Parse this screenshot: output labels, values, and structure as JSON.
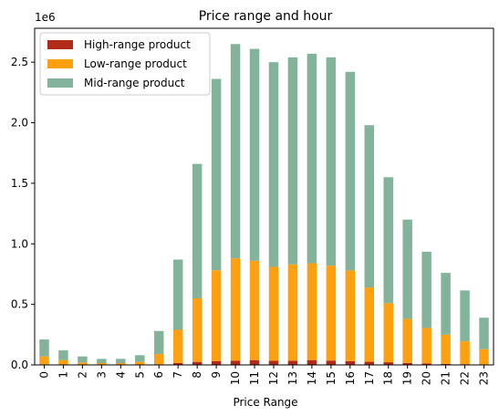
{
  "chart_data": {
    "type": "bar",
    "stacked": true,
    "title": "Price range and hour",
    "xlabel": "Price Range",
    "ylabel": "",
    "y_multiplier_label": "1e6",
    "categories": [
      "0",
      "1",
      "2",
      "3",
      "4",
      "5",
      "6",
      "7",
      "8",
      "9",
      "10",
      "11",
      "12",
      "13",
      "14",
      "15",
      "16",
      "17",
      "18",
      "19",
      "20",
      "21",
      "22",
      "23"
    ],
    "y_ticks": [
      0.0,
      0.5,
      1.0,
      1.5,
      2.0,
      2.5
    ],
    "y_tick_labels": [
      "0.0",
      "0.5",
      "1.0",
      "1.5",
      "2.0",
      "2.5"
    ],
    "ylim": [
      0,
      2.78
    ],
    "legend_position": "upper-left",
    "series": [
      {
        "name": "High-range product",
        "color": "#b22a1a",
        "values": [
          0.004,
          0.002,
          0.001,
          0.001,
          0.001,
          0.001,
          0.004,
          0.015,
          0.025,
          0.032,
          0.035,
          0.04,
          0.034,
          0.035,
          0.04,
          0.036,
          0.032,
          0.026,
          0.022,
          0.016,
          0.012,
          0.008,
          0.006,
          0.003
        ]
      },
      {
        "name": "Low-range product",
        "color": "#ffa010",
        "values": [
          0.066,
          0.038,
          0.019,
          0.014,
          0.014,
          0.024,
          0.086,
          0.275,
          0.525,
          0.75,
          0.845,
          0.82,
          0.776,
          0.795,
          0.8,
          0.784,
          0.748,
          0.614,
          0.488,
          0.364,
          0.293,
          0.242,
          0.189,
          0.127
        ]
      },
      {
        "name": "Mid-range product",
        "color": "#84b39c",
        "values": [
          0.14,
          0.08,
          0.05,
          0.035,
          0.035,
          0.055,
          0.19,
          0.58,
          1.11,
          1.58,
          1.77,
          1.75,
          1.69,
          1.71,
          1.73,
          1.72,
          1.64,
          1.34,
          1.04,
          0.82,
          0.63,
          0.51,
          0.42,
          0.26
        ]
      }
    ]
  }
}
